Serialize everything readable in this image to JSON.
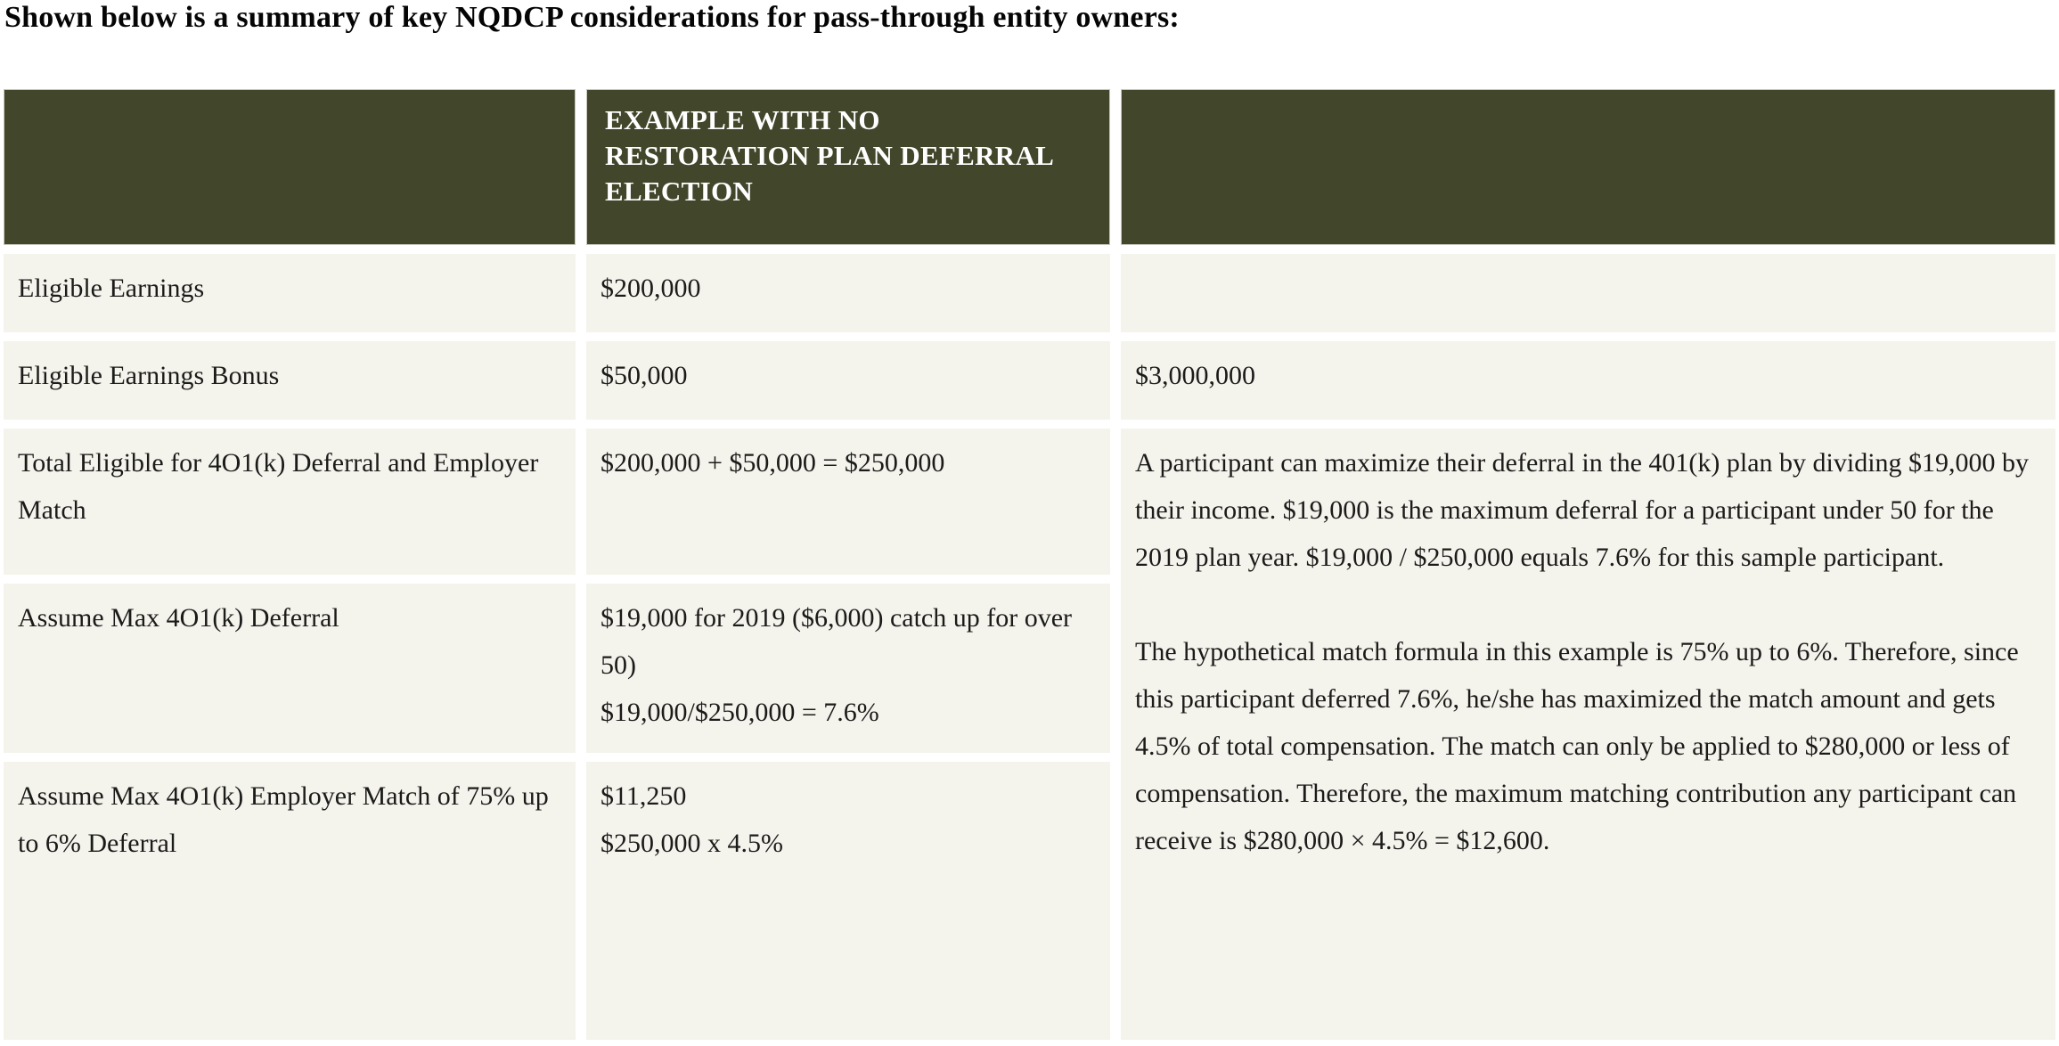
{
  "page": {
    "title": "Shown below is a summary of key NQDCP considerations for pass-through entity owners:"
  },
  "colors": {
    "header_bg": "#42472B",
    "header_text": "#FFFFFF",
    "cell_bg": "#F4F3EC",
    "body_text": "#1B1B19",
    "page_bg": "#FFFFFF"
  },
  "table": {
    "headers": {
      "col1": "",
      "col2": "EXAMPLE WITH NO RESTORATION PLAN DEFERRAL ELECTION",
      "col3": ""
    },
    "rows": [
      {
        "label": "Eligible Earnings",
        "example": "$200,000",
        "note": ""
      },
      {
        "label": "Eligible Earnings Bonus",
        "example": "$50,000",
        "note": "$3,000,000"
      },
      {
        "label": "Total Eligible for 4O1(k) Deferral and Employer Match",
        "example": "$200,000 + $50,000 = $250,000"
      },
      {
        "label": "Assume Max 4O1(k) Deferral",
        "example_lines": [
          "$19,000 for 2019 ($6,000) catch up for over 50)",
          "$19,000/$250,000 = 7.6%"
        ]
      },
      {
        "label": "Assume Max 4O1(k) Employer Match of 75% up to 6% Deferral",
        "example_lines": [
          "$11,250",
          "$250,000 x 4.5%"
        ]
      }
    ],
    "merged_note_paragraphs": [
      "A participant can maximize their deferral in the 401(k) plan by dividing $19,000 by their income. $19,000 is the maximum deferral for a participant under 50 for the 2019 plan year. $19,000 / $250,000 equals 7.6% for this sample participant.",
      "The hypothetical match formula in this example is 75% up to 6%. Therefore, since this participant deferred 7.6%, he/she has maximized the match amount and gets 4.5% of total compensation. The match can only be applied to $280,000 or less of compensation. Therefore, the maximum matching contribution any participant can receive is $280,000 × 4.5% = $12,600."
    ]
  }
}
